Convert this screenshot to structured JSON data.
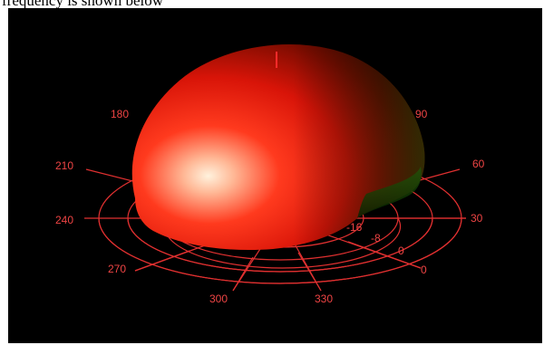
{
  "caption": "frequency is shown below",
  "colors": {
    "background": "#000000",
    "grid": "#e03030",
    "surface_highlight": "#ffe6cc",
    "surface_mid": "#e81818",
    "surface_shadow": "#3a1a00",
    "surface_green_tint": "#2a6a10"
  },
  "plot": {
    "azimuth_labels": [
      "0",
      "30",
      "60",
      "90",
      "180",
      "210",
      "240",
      "270",
      "300",
      "330"
    ],
    "radial_labels": [
      "-16",
      "-8",
      "0"
    ]
  }
}
